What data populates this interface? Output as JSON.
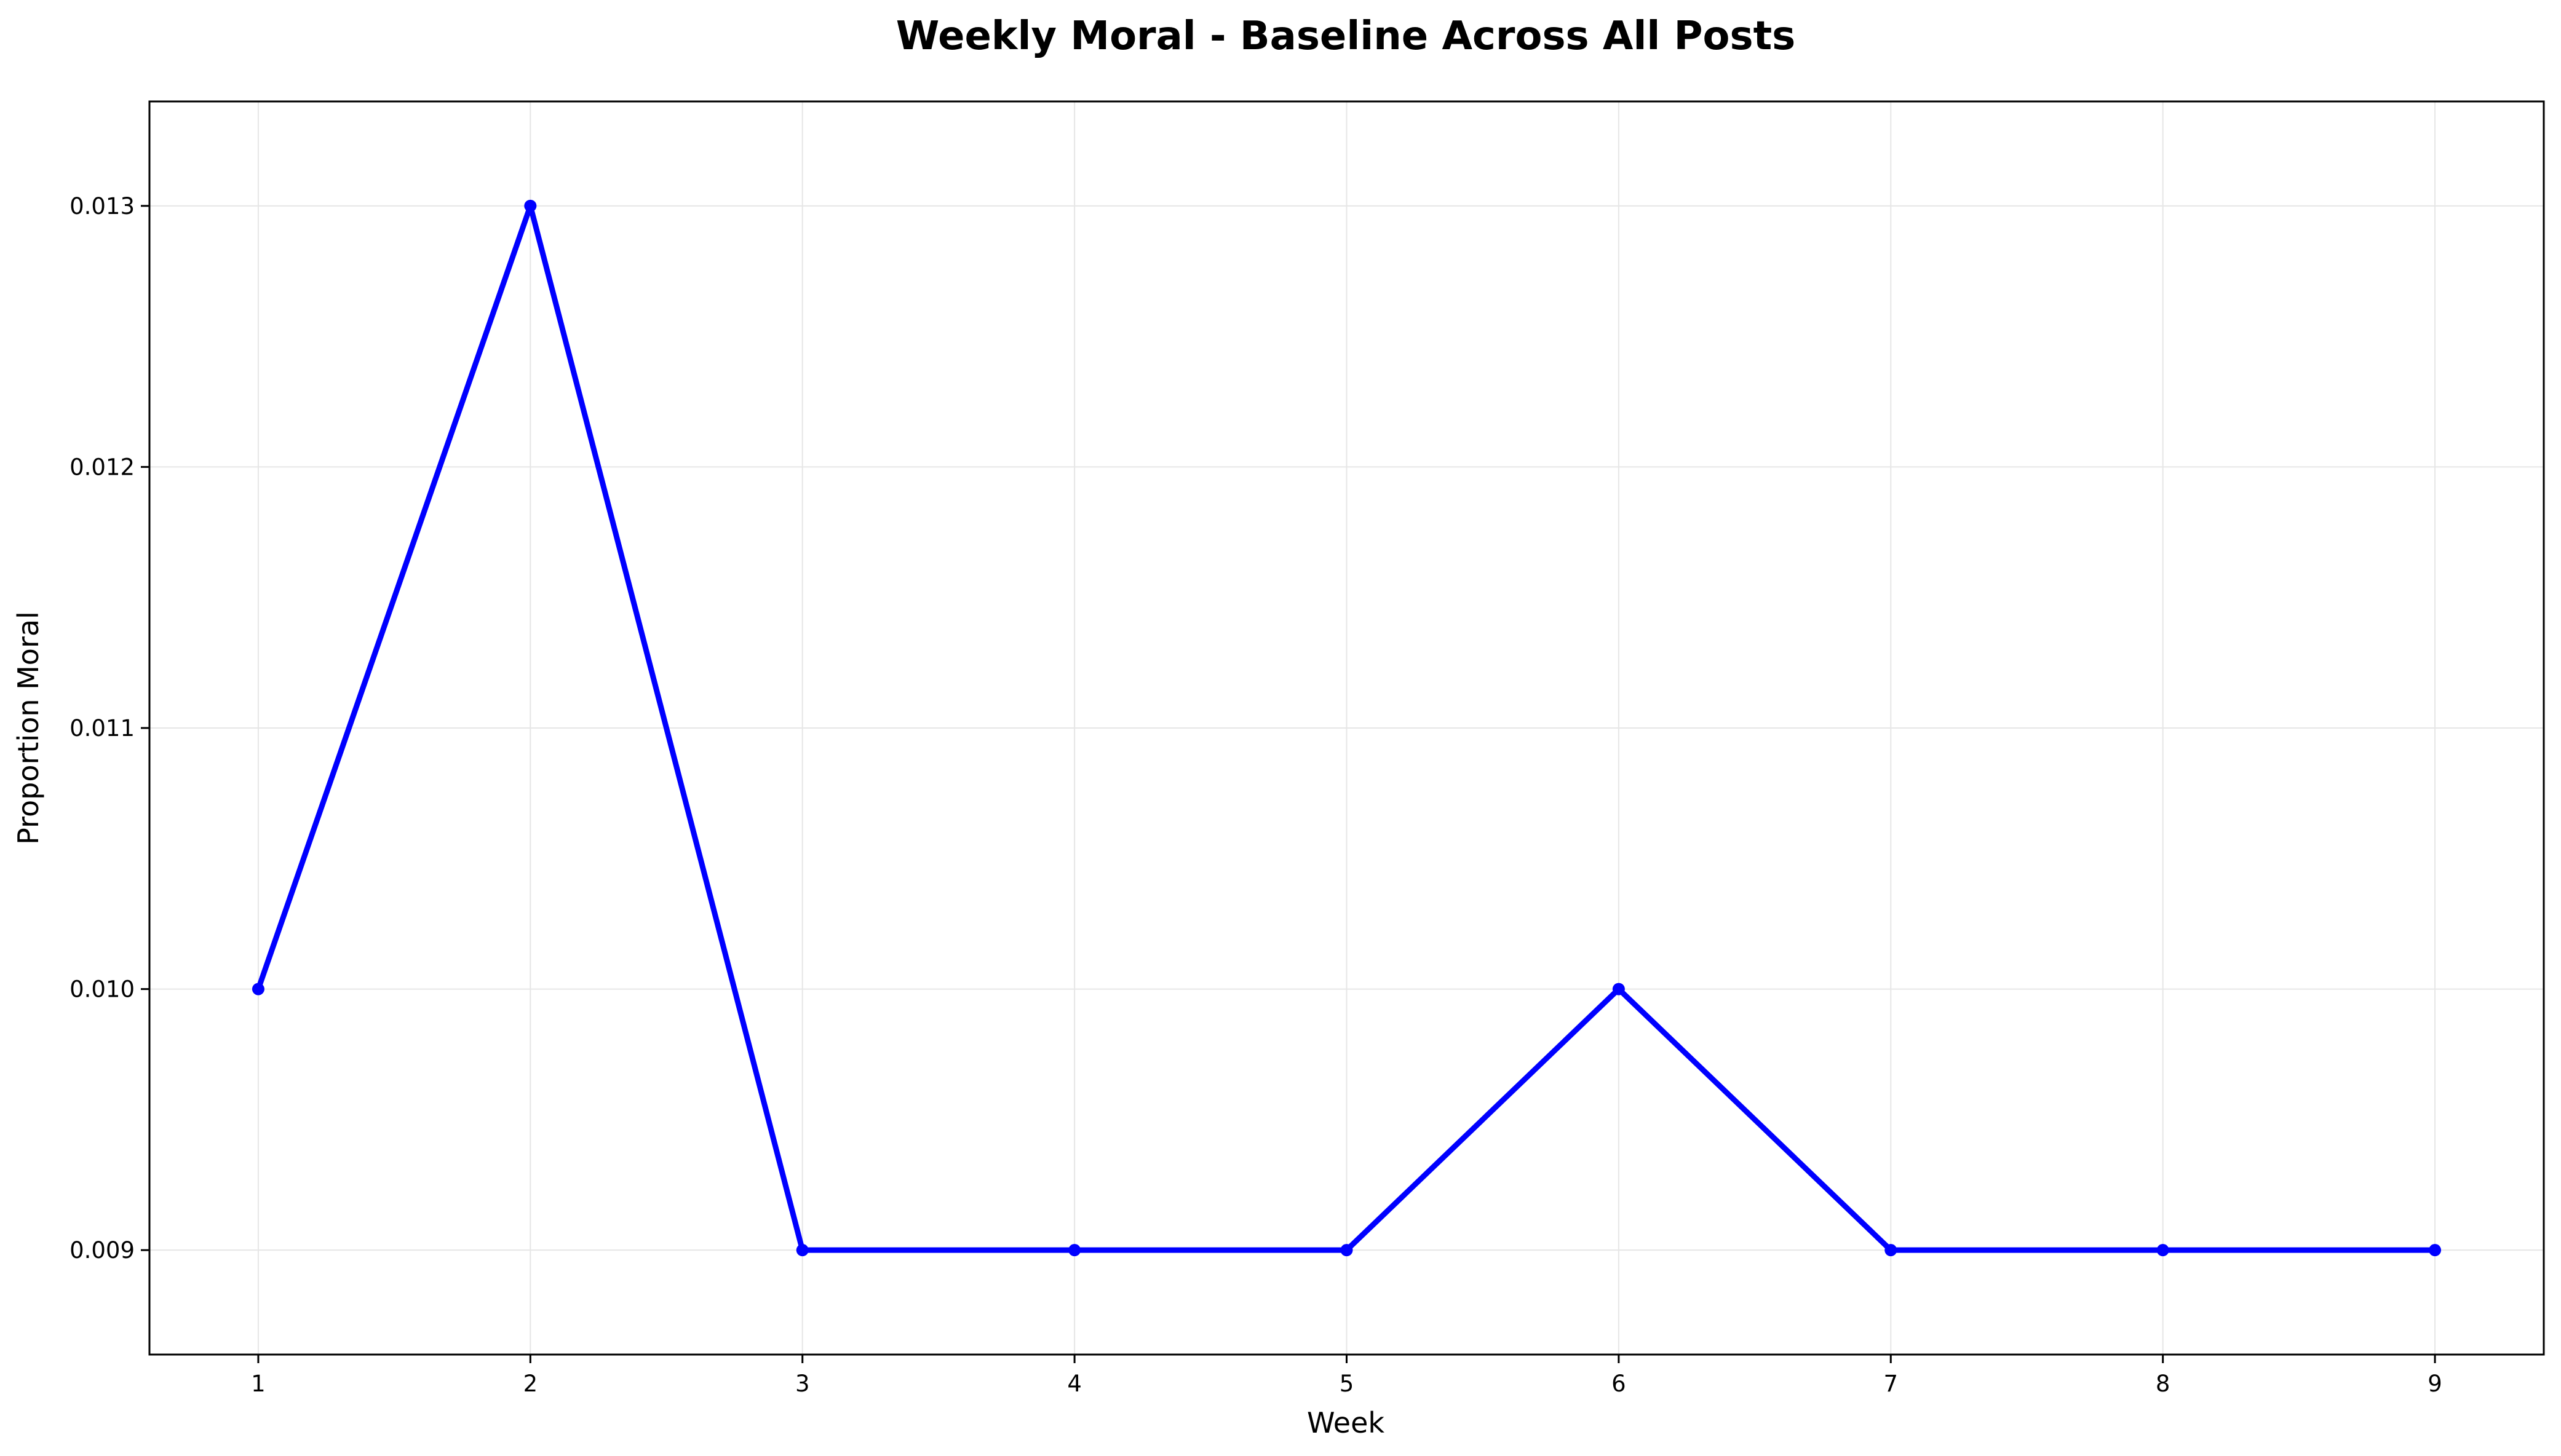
{
  "chart_data": {
    "type": "line",
    "title": "Weekly Moral - Baseline Across All Posts",
    "xlabel": "Week",
    "ylabel": "Proportion Moral",
    "x": [
      1,
      2,
      3,
      4,
      5,
      6,
      7,
      8,
      9
    ],
    "xticks": [
      "1",
      "2",
      "3",
      "4",
      "5",
      "6",
      "7",
      "8",
      "9"
    ],
    "yticks": [
      "0.009",
      "0.010",
      "0.011",
      "0.012",
      "0.013"
    ],
    "ytick_values": [
      0.009,
      0.01,
      0.011,
      0.012,
      0.013
    ],
    "xlim": [
      0.6,
      9.4
    ],
    "ylim": [
      0.0086,
      0.0134
    ],
    "grid": true,
    "series": [
      {
        "values": [
          0.01,
          0.013,
          0.009,
          0.009,
          0.009,
          0.01,
          0.009,
          0.009,
          0.009
        ],
        "color": "#0000ff",
        "marker": "circle"
      }
    ]
  }
}
